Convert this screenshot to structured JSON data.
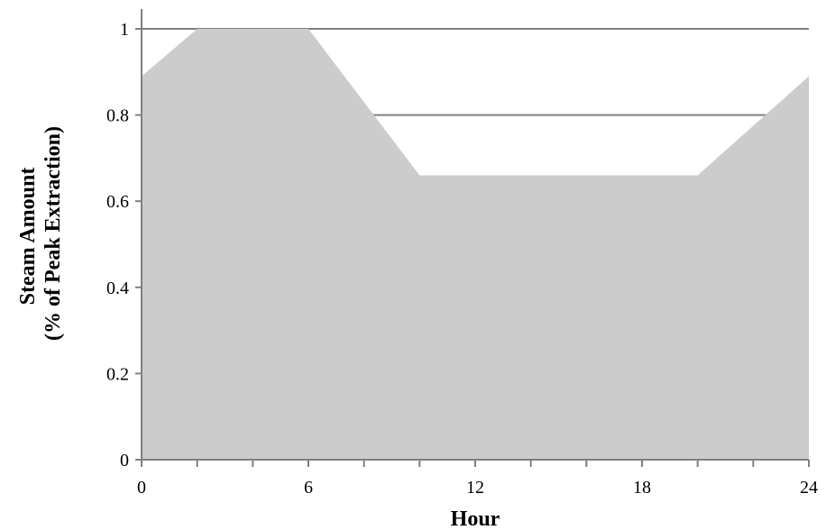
{
  "chart_data": {
    "type": "area",
    "x": [
      0,
      2,
      6,
      10,
      20,
      24
    ],
    "y": [
      0.89,
      1.0,
      1.0,
      0.66,
      0.66,
      0.89
    ],
    "xlabel": "Hour",
    "ylabel_lines": [
      "Steam Amount",
      "(% of Peak Extraction)"
    ],
    "xlim": [
      0,
      24
    ],
    "ylim": [
      0,
      1
    ],
    "x_ticks": [
      0,
      6,
      12,
      18,
      24
    ],
    "x_minor_step": 2,
    "y_ticks": [
      0,
      0.2,
      0.4,
      0.6,
      0.8,
      1
    ],
    "y_tick_labels": [
      "0",
      "0.2",
      "0.4",
      "0.6",
      "0.8",
      "1"
    ],
    "grid": "horizontal",
    "fill_color": "#cccccc",
    "grid_color": "#7f7f7f"
  }
}
